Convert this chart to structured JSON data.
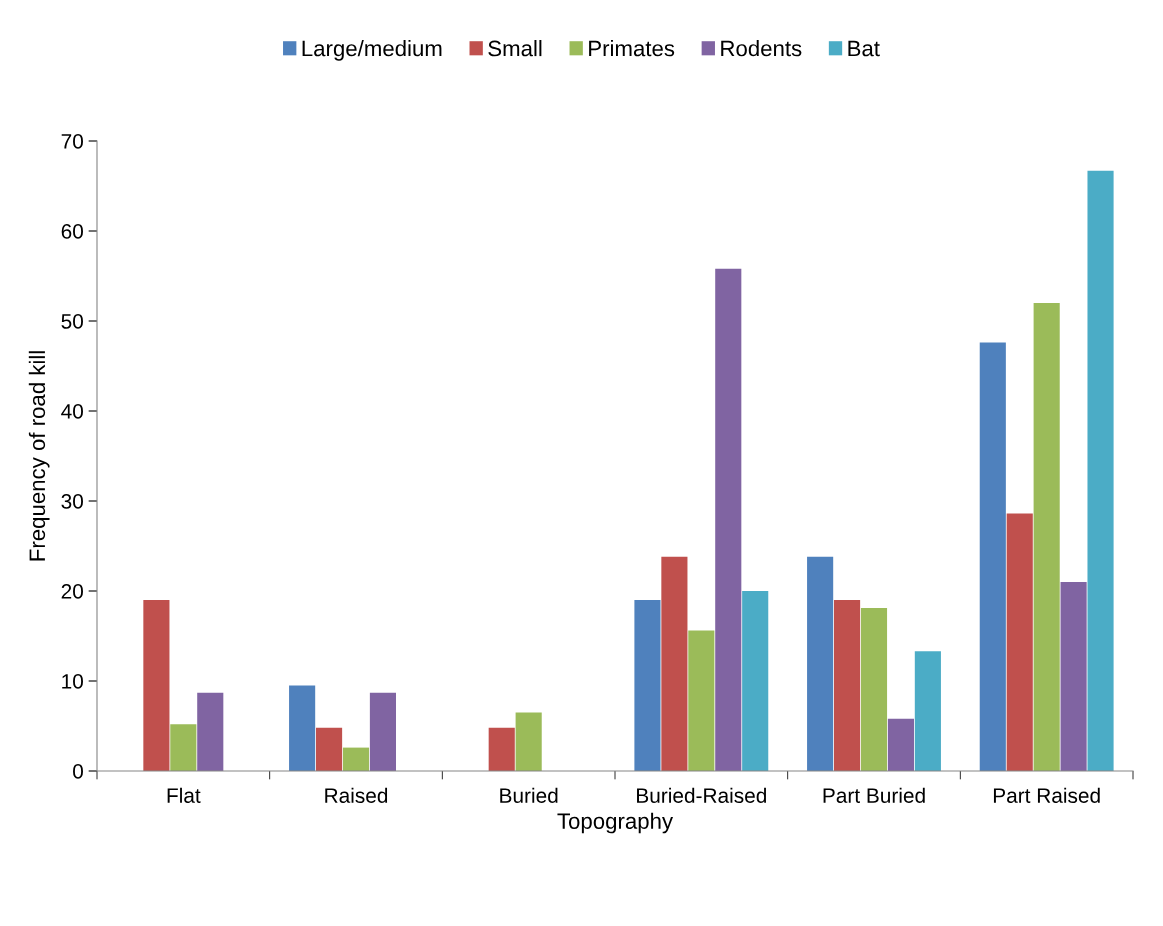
{
  "chart_data": {
    "type": "bar",
    "xlabel": "Topography",
    "ylabel": "Frequency of road kill",
    "categories": [
      "Flat",
      "Raised",
      "Buried",
      "Buried-Raised",
      "Part Buried",
      "Part Raised"
    ],
    "series": [
      {
        "name": "Large/medium",
        "color": "#4f81bd",
        "values": [
          0,
          9.5,
          0,
          19.0,
          23.8,
          47.6
        ]
      },
      {
        "name": "Small",
        "color": "#c0504d",
        "values": [
          19.0,
          4.8,
          4.8,
          23.8,
          19.0,
          28.6
        ]
      },
      {
        "name": "Primates",
        "color": "#9bbb59",
        "values": [
          5.2,
          2.6,
          6.5,
          15.6,
          18.1,
          52.0
        ]
      },
      {
        "name": "Rodents",
        "color": "#8064a2",
        "values": [
          8.7,
          8.7,
          0,
          55.8,
          5.8,
          21.0
        ]
      },
      {
        "name": "Bat",
        "color": "#4bacc6",
        "values": [
          0,
          0,
          0,
          20.0,
          13.3,
          66.7
        ]
      }
    ],
    "ylim": [
      0,
      70
    ],
    "yticks": [
      0,
      10,
      20,
      30,
      40,
      50,
      60,
      70
    ],
    "grid": false,
    "legend": "top"
  }
}
